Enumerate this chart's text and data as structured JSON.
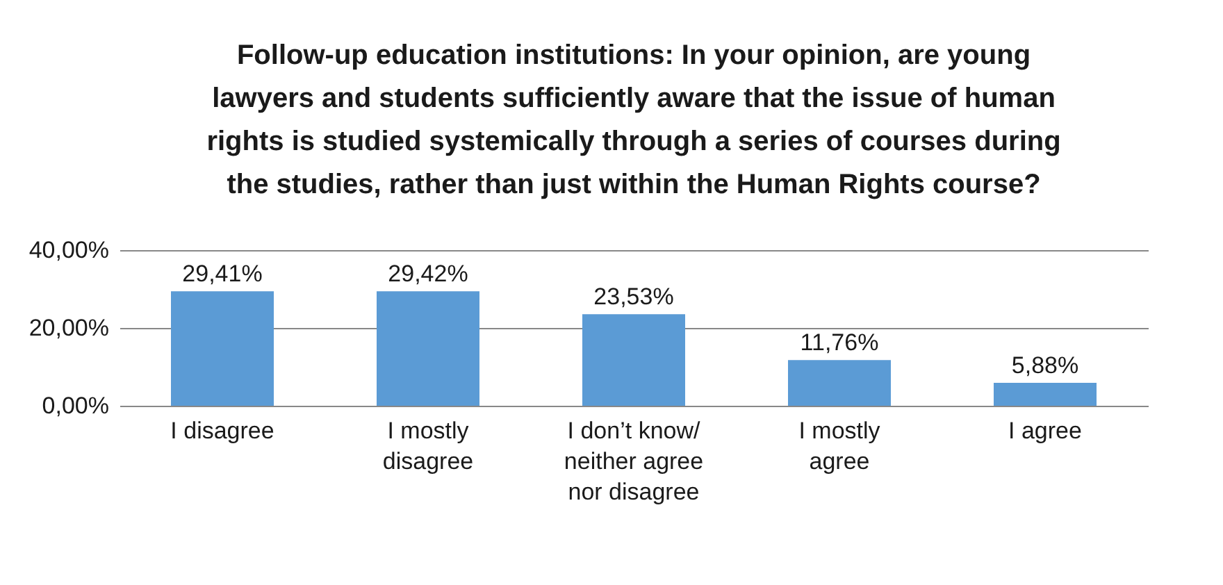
{
  "chart_data": {
    "type": "bar",
    "title": "Follow-up education institutions: In your opinion, are young lawyers and students sufficiently aware that the issue of human rights is studied systemically through a series of courses during the studies, rather than just within the Human Rights course?",
    "categories": [
      "I disagree",
      "I mostly disagree",
      "I don’t know/ neither agree nor disagree",
      "I mostly agree",
      "I agree"
    ],
    "values": [
      29.41,
      29.42,
      23.53,
      11.76,
      5.88
    ],
    "value_labels": [
      "29,41%",
      "29,42%",
      "23,53%",
      "11,76%",
      "5,88%"
    ],
    "color": "#5b9bd5",
    "ylim": [
      0,
      40
    ],
    "yticks": [
      {
        "value": 0,
        "label": "0,00%"
      },
      {
        "value": 20,
        "label": "20,00%"
      },
      {
        "value": 40,
        "label": "40,00%"
      }
    ],
    "grid": "y"
  }
}
